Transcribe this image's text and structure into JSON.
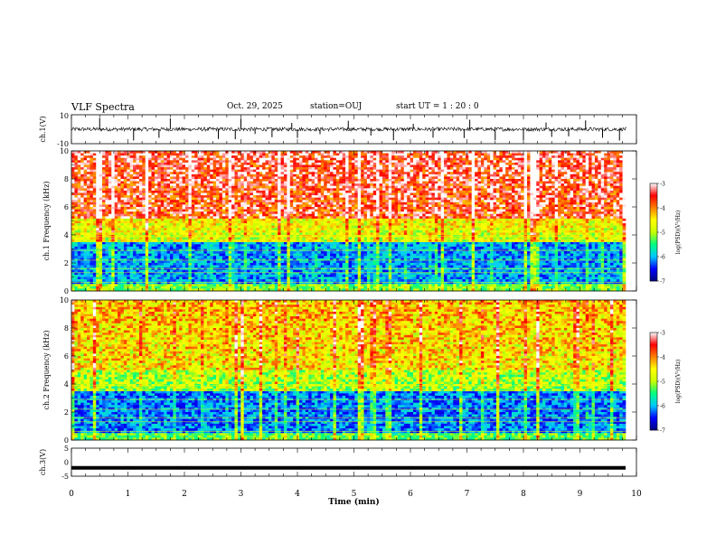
{
  "header": {
    "title": "VLF Spectra",
    "date": "Oct. 29, 2025",
    "station": "station=OUJ",
    "start": "start  UT =   1 : 20 : 0"
  },
  "colorbar": {
    "label": "log(PSD)(V²/Hz)",
    "ticks": [
      "-3",
      "-4",
      "-5",
      "-6",
      "-7"
    ],
    "range": [
      -7,
      -3
    ],
    "colors": [
      "#000080",
      "#0000ff",
      "#00c8ff",
      "#00ff80",
      "#c8ff00",
      "#ffff00",
      "#ff8000",
      "#ff0000",
      "#ffffff"
    ]
  },
  "chart_data": [
    {
      "type": "line",
      "panel": "ch1-waveform",
      "ylabel": "ch.1(V)",
      "yticks": [
        "10",
        "-10"
      ],
      "ylim": [
        -10,
        10
      ],
      "xlim": [
        0,
        10
      ],
      "baseline": 0,
      "spike_times_min": [
        0.5,
        1.1,
        1.55,
        1.75,
        2.6,
        2.9,
        3.0,
        3.25,
        3.55,
        3.9,
        4.0,
        4.4,
        4.9,
        5.3,
        5.7,
        6.05,
        6.4,
        6.95,
        7.05,
        7.5,
        8.0,
        8.4,
        8.5,
        8.8,
        9.1,
        9.4,
        9.7
      ]
    },
    {
      "type": "heatmap",
      "panel": "ch1-spectrogram",
      "ylabel": "ch.1 Frequency (kHz)",
      "yticks": [
        "0",
        "2",
        "4",
        "6",
        "8",
        "10"
      ],
      "ylim": [
        0,
        10
      ],
      "xlim": [
        0,
        9.83
      ],
      "high_band_level": -3.4,
      "mid_band_level": -4.8,
      "low_band_level": -6.1,
      "transition_freq_khz": 5.2,
      "zscale": [
        -7,
        -3
      ]
    },
    {
      "type": "heatmap",
      "panel": "ch2-spectrogram",
      "ylabel": "ch.2 Frequency (kHz)",
      "yticks": [
        "0",
        "2",
        "4",
        "6",
        "8",
        "10"
      ],
      "ylim": [
        0,
        10
      ],
      "xlim": [
        0,
        9.83
      ],
      "high_band_level": -4.3,
      "mid_band_level": -5.1,
      "low_band_level": -6.2,
      "transition_freq_khz": 5.0,
      "zscale": [
        -7,
        -3
      ]
    },
    {
      "type": "line",
      "panel": "ch3-waveform",
      "ylabel": "ch.3(V)",
      "yticks": [
        "5",
        "0",
        "-5"
      ],
      "ylim": [
        -5,
        5
      ],
      "xlim": [
        0,
        10
      ],
      "level_v": -2
    }
  ],
  "xaxis": {
    "label": "Time (min)",
    "ticks": [
      "0",
      "1",
      "2",
      "3",
      "4",
      "5",
      "6",
      "7",
      "8",
      "9",
      "10"
    ]
  }
}
